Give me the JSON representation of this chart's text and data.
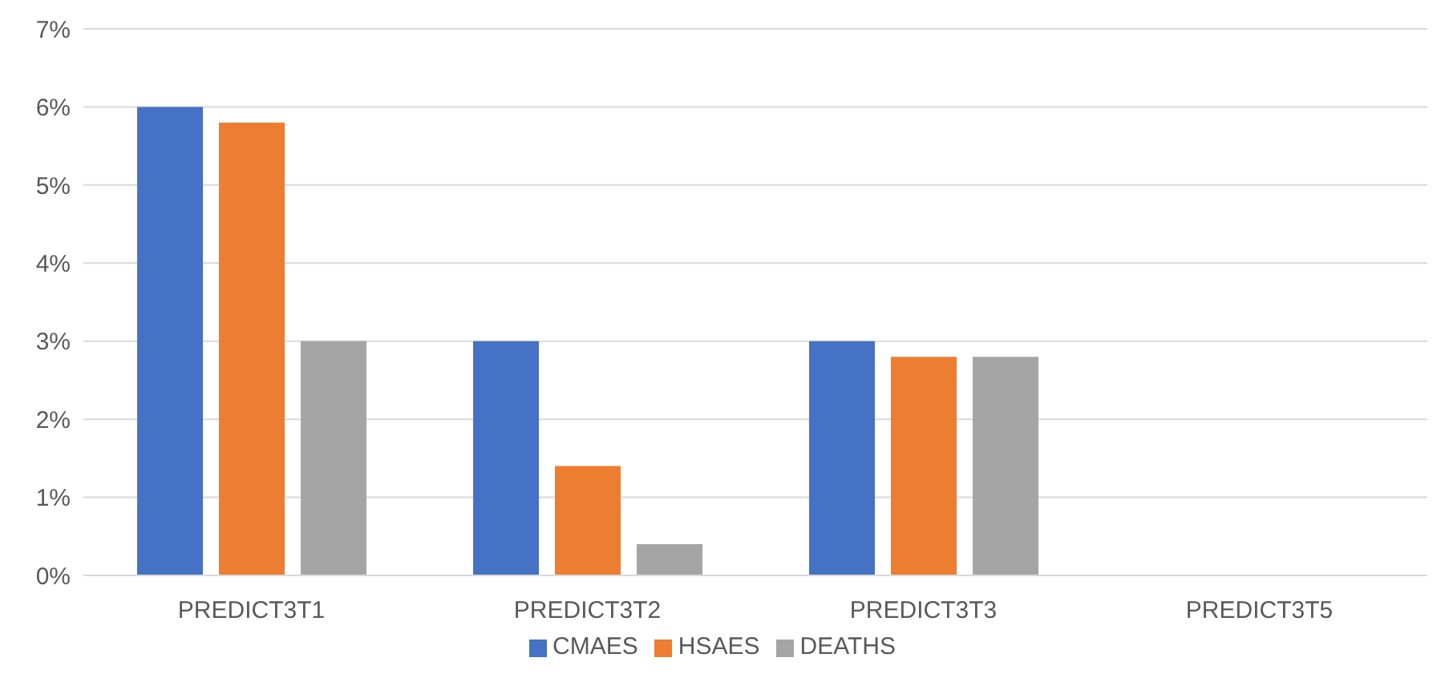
{
  "chart_data": {
    "type": "bar",
    "categories": [
      "PREDICT3T1",
      "PREDICT3T2",
      "PREDICT3T3",
      "PREDICT3T5"
    ],
    "series": [
      {
        "name": "CMAES",
        "color": "#4472c4",
        "values": [
          6,
          3,
          3,
          0
        ]
      },
      {
        "name": "HSAES",
        "color": "#ed7d31",
        "values": [
          5.8,
          1.4,
          2.8,
          0
        ]
      },
      {
        "name": "DEATHS",
        "color": "#a5a5a5",
        "values": [
          3,
          0.4,
          2.8,
          0
        ]
      }
    ],
    "ylim": [
      0,
      7
    ],
    "yticks": [
      {
        "value": 0,
        "label": "0%"
      },
      {
        "value": 1,
        "label": "1%"
      },
      {
        "value": 2,
        "label": "2%"
      },
      {
        "value": 3,
        "label": "3%"
      },
      {
        "value": 4,
        "label": "4%"
      },
      {
        "value": 5,
        "label": "5%"
      },
      {
        "value": 6,
        "label": "6%"
      },
      {
        "value": 7,
        "label": "7%"
      }
    ],
    "grid": "y",
    "legend": "bottom"
  }
}
